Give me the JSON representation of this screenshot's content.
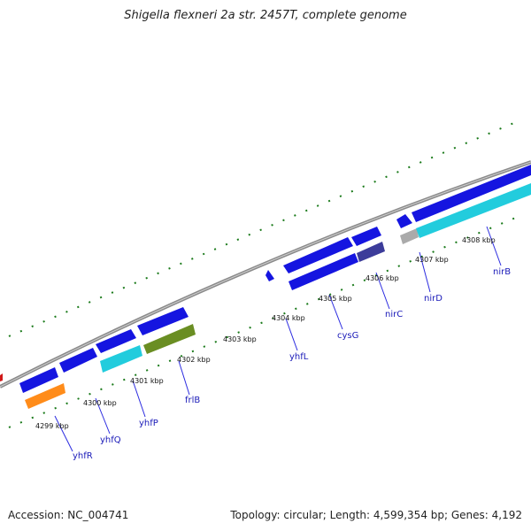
{
  "title": "Shigella flexneri 2a str. 2457T, complete genome",
  "footer": {
    "accession": "Accession: NC_004741",
    "summary": "Topology: circular; Length: 4,599,354 bp; Genes: 4,192"
  },
  "kbp_labels": [
    "4299 kbp",
    "4300 kbp",
    "4301 kbp",
    "4302 kbp",
    "4303 kbp",
    "4304 kbp",
    "4305 kbp",
    "4306 kbp",
    "4307 kbp",
    "4308 kbp"
  ],
  "gene_labels": [
    "yhfR",
    "yhfQ",
    "yhfP",
    "frlB",
    "yhfL",
    "cysG",
    "nirC",
    "nirD",
    "nirB"
  ],
  "colors": {
    "backbone": "#8a8a8a",
    "tick": "#1a7a1a",
    "gene_blue": "#1515e0",
    "gene_cyan": "#22ccdd",
    "gene_orange": "#ff8c1a",
    "gene_olive": "#6a8e23",
    "gene_slate": "#3c3c9a",
    "gene_grey": "#aaaaaa",
    "gene_label": "#1a1ab8"
  }
}
